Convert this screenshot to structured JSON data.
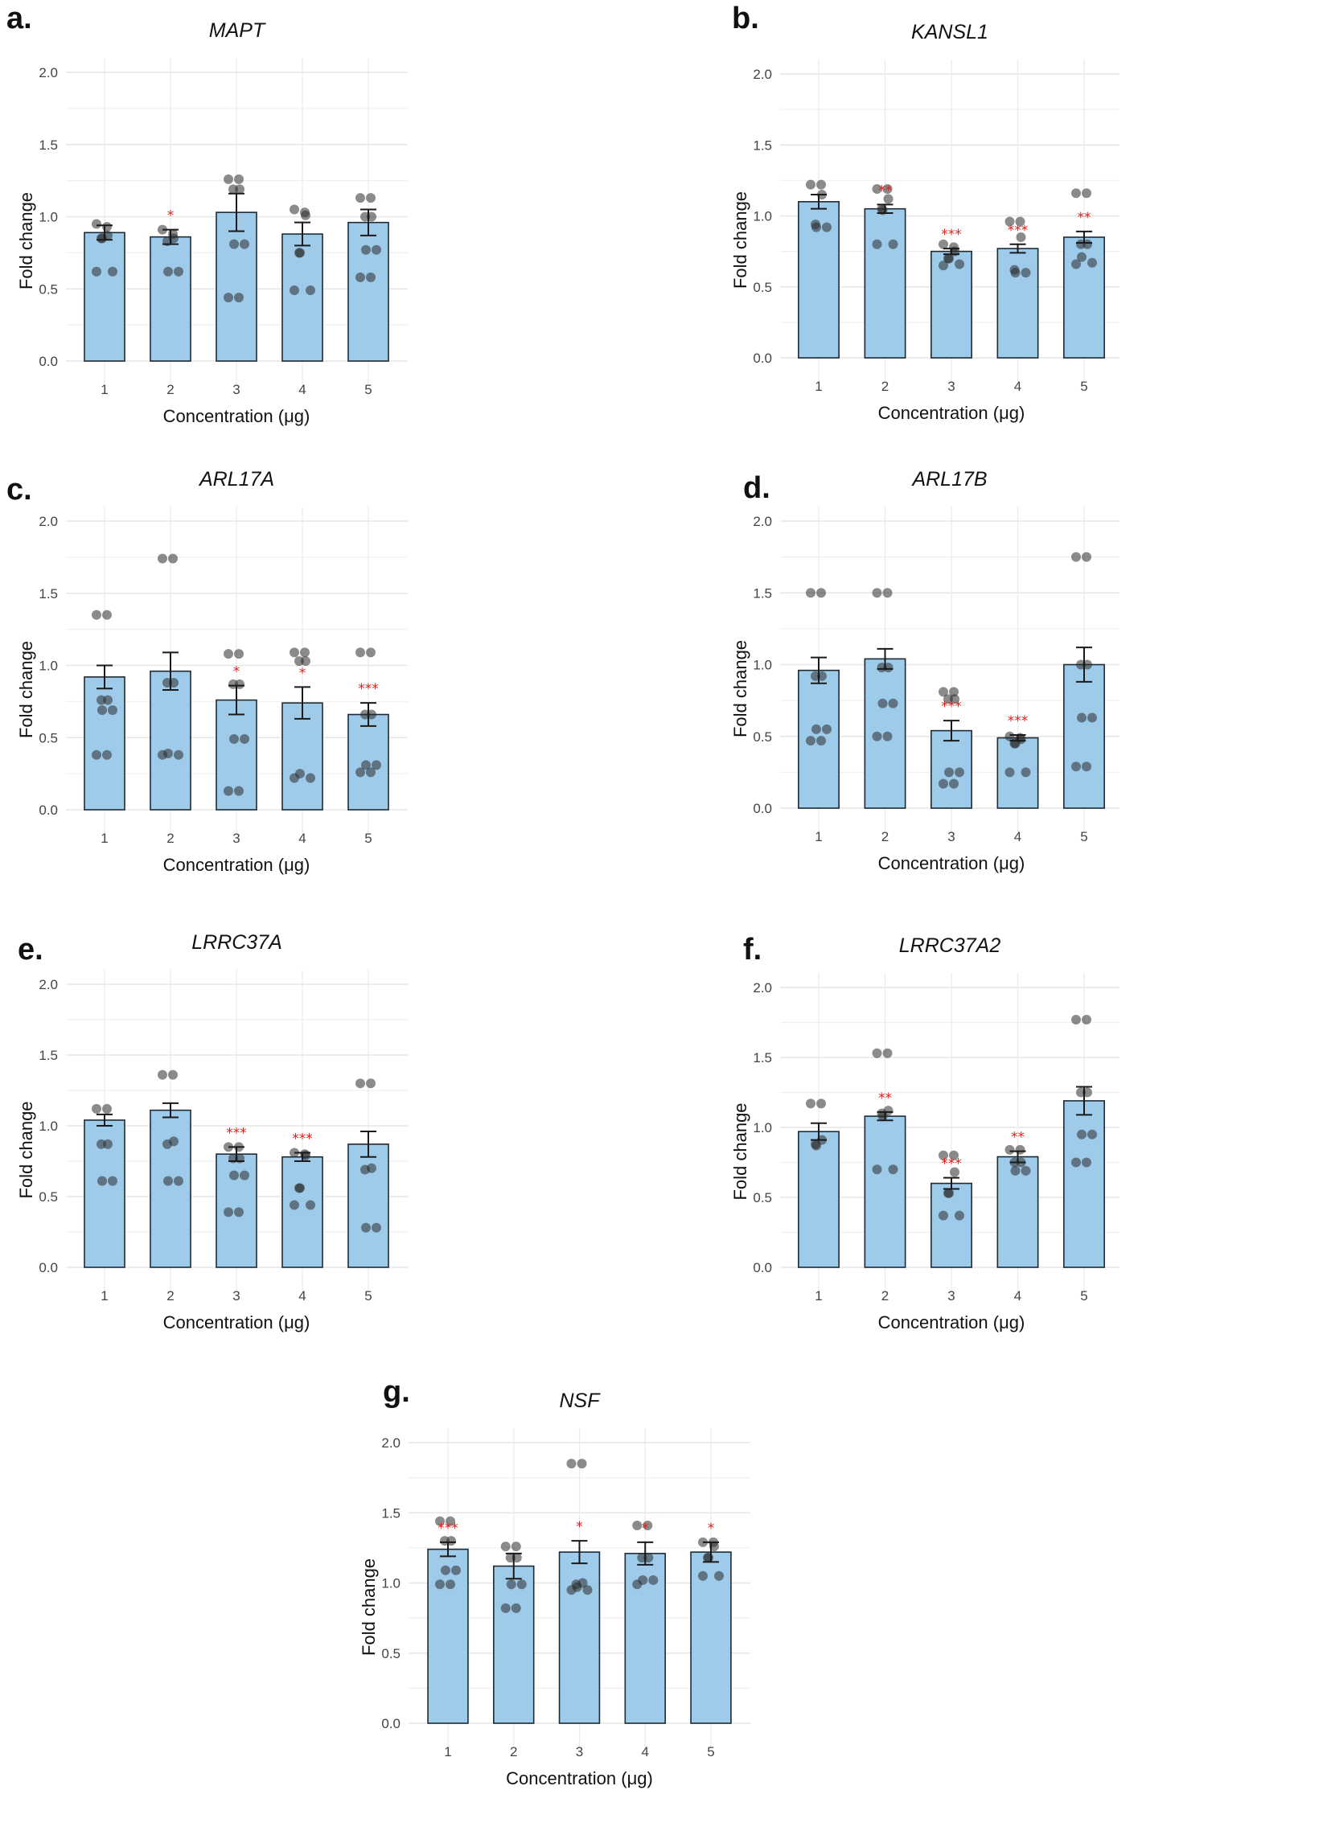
{
  "figure": {
    "bar_color": "#9ecbea",
    "bar_stroke": "#1e2a33",
    "dot_color": "#2b2b2b",
    "sig_color": "#e0201b",
    "grid_color": "#ebebeb"
  },
  "chart_data": [
    {
      "panel": "a.",
      "type": "bar",
      "title": "MAPT",
      "xlabel": "Concentration (μg)",
      "ylabel": "Fold change",
      "categories": [
        "1",
        "2",
        "3",
        "4",
        "5"
      ],
      "yticks": [
        "0.0",
        "0.5",
        "1.0",
        "1.5",
        "2.0"
      ],
      "ylim": [
        0,
        2.0
      ],
      "grid": true,
      "values": [
        0.89,
        0.86,
        1.03,
        0.88,
        0.96
      ],
      "sem": [
        0.05,
        0.05,
        0.13,
        0.08,
        0.09
      ],
      "significance": [
        "",
        "*",
        "",
        "",
        ""
      ],
      "points": [
        [
          0.95,
          0.93,
          0.87,
          0.85,
          0.85,
          0.62,
          0.62
        ],
        [
          0.91,
          0.88,
          0.85,
          0.83,
          0.62,
          0.62
        ],
        [
          1.26,
          1.26,
          1.19,
          1.19,
          0.81,
          0.81,
          0.44,
          0.44
        ],
        [
          1.05,
          1.03,
          1.01,
          0.75,
          0.75,
          0.49,
          0.49
        ],
        [
          1.13,
          1.13,
          1.0,
          1.0,
          0.77,
          0.77,
          0.58,
          0.58
        ]
      ]
    },
    {
      "panel": "b.",
      "type": "bar",
      "title": "KANSL1",
      "xlabel": "Concentration (μg)",
      "ylabel": "Fold change",
      "categories": [
        "1",
        "2",
        "3",
        "4",
        "5"
      ],
      "yticks": [
        "0.0",
        "0.5",
        "1.0",
        "1.5",
        "2.0"
      ],
      "ylim": [
        0,
        2.0
      ],
      "grid": true,
      "values": [
        1.1,
        1.05,
        0.75,
        0.77,
        0.85
      ],
      "sem": [
        0.05,
        0.03,
        0.02,
        0.03,
        0.04
      ],
      "significance": [
        "",
        "**",
        "***",
        "***",
        "**"
      ],
      "points": [
        [
          1.22,
          1.22,
          1.15,
          0.94,
          0.92,
          0.92
        ],
        [
          1.19,
          1.19,
          1.12,
          1.05,
          1.04,
          0.8,
          0.8
        ],
        [
          0.8,
          0.78,
          0.75,
          0.7,
          0.7,
          0.66,
          0.65
        ],
        [
          0.96,
          0.96,
          0.85,
          0.62,
          0.6,
          0.6
        ],
        [
          1.16,
          1.16,
          0.8,
          0.8,
          0.71,
          0.67,
          0.66
        ]
      ]
    },
    {
      "panel": "c.",
      "type": "bar",
      "title": "ARL17A",
      "xlabel": "Concentration (μg)",
      "ylabel": "Fold change",
      "categories": [
        "1",
        "2",
        "3",
        "4",
        "5"
      ],
      "yticks": [
        "0.0",
        "0.5",
        "1.0",
        "1.5",
        "2.0"
      ],
      "ylim": [
        0,
        2.0
      ],
      "grid": true,
      "values": [
        0.92,
        0.96,
        0.76,
        0.74,
        0.66
      ],
      "sem": [
        0.08,
        0.13,
        0.1,
        0.11,
        0.08
      ],
      "significance": [
        "",
        "",
        "*",
        "*",
        "***"
      ],
      "points": [
        [
          1.35,
          1.35,
          0.76,
          0.76,
          0.69,
          0.69,
          0.38,
          0.38
        ],
        [
          1.74,
          1.74,
          0.88,
          0.88,
          0.39,
          0.38,
          0.38
        ],
        [
          1.08,
          1.08,
          0.87,
          0.87,
          0.49,
          0.49,
          0.13,
          0.13
        ],
        [
          1.09,
          1.09,
          1.03,
          1.03,
          0.25,
          0.22,
          0.22
        ],
        [
          1.09,
          1.09,
          0.66,
          0.66,
          0.31,
          0.31,
          0.26,
          0.26
        ]
      ]
    },
    {
      "panel": "d.",
      "type": "bar",
      "title": "ARL17B",
      "xlabel": "Concentration (μg)",
      "ylabel": "Fold change",
      "categories": [
        "1",
        "2",
        "3",
        "4",
        "5"
      ],
      "yticks": [
        "0.0",
        "0.5",
        "1.0",
        "1.5",
        "2.0"
      ],
      "ylim": [
        0,
        2.0
      ],
      "grid": true,
      "values": [
        0.96,
        1.04,
        0.54,
        0.49,
        1.0
      ],
      "sem": [
        0.09,
        0.07,
        0.07,
        0.02,
        0.12
      ],
      "significance": [
        "",
        "",
        "***",
        "***",
        ""
      ],
      "points": [
        [
          1.5,
          1.5,
          0.92,
          0.92,
          0.55,
          0.55,
          0.47,
          0.47
        ],
        [
          1.5,
          1.5,
          0.98,
          0.98,
          0.73,
          0.73,
          0.5,
          0.5
        ],
        [
          0.81,
          0.81,
          0.76,
          0.76,
          0.25,
          0.25,
          0.17,
          0.17
        ],
        [
          0.5,
          0.49,
          0.48,
          0.45,
          0.45,
          0.25,
          0.25
        ],
        [
          1.75,
          1.75,
          1.0,
          1.0,
          0.63,
          0.63,
          0.29,
          0.29
        ]
      ]
    },
    {
      "panel": "e.",
      "type": "bar",
      "title": "LRRC37A",
      "xlabel": "Concentration (μg)",
      "ylabel": "Fold change",
      "categories": [
        "1",
        "2",
        "3",
        "4",
        "5"
      ],
      "yticks": [
        "0.0",
        "0.5",
        "1.0",
        "1.5",
        "2.0"
      ],
      "ylim": [
        0,
        2.0
      ],
      "grid": true,
      "values": [
        1.04,
        1.11,
        0.8,
        0.78,
        0.87
      ],
      "sem": [
        0.04,
        0.05,
        0.05,
        0.03,
        0.09
      ],
      "significance": [
        "",
        "",
        "***",
        "***",
        ""
      ],
      "points": [
        [
          1.12,
          1.12,
          0.87,
          0.87,
          0.61,
          0.61
        ],
        [
          1.36,
          1.36,
          0.89,
          0.87,
          0.61,
          0.61
        ],
        [
          0.85,
          0.85,
          0.77,
          0.77,
          0.65,
          0.65,
          0.39,
          0.39
        ],
        [
          0.81,
          0.8,
          0.79,
          0.56,
          0.56,
          0.44,
          0.44
        ],
        [
          1.3,
          1.3,
          0.7,
          0.69,
          0.28,
          0.28
        ]
      ]
    },
    {
      "panel": "f.",
      "type": "bar",
      "title": "LRRC37A2",
      "xlabel": "Concentration (μg)",
      "ylabel": "Fold change",
      "categories": [
        "1",
        "2",
        "3",
        "4",
        "5"
      ],
      "yticks": [
        "0.0",
        "0.5",
        "1.0",
        "1.5",
        "2.0"
      ],
      "ylim": [
        0,
        2.0
      ],
      "grid": true,
      "values": [
        0.97,
        1.08,
        0.6,
        0.79,
        1.19
      ],
      "sem": [
        0.06,
        0.03,
        0.04,
        0.04,
        0.1
      ],
      "significance": [
        "",
        "**",
        "***",
        "**",
        ""
      ],
      "points": [
        [
          1.17,
          1.17,
          0.91,
          0.88,
          0.87
        ],
        [
          1.53,
          1.53,
          1.12,
          1.1,
          1.08,
          0.7,
          0.7
        ],
        [
          0.8,
          0.8,
          0.68,
          0.53,
          0.53,
          0.37,
          0.37
        ],
        [
          0.84,
          0.84,
          0.75,
          0.75,
          0.69,
          0.69
        ],
        [
          1.77,
          1.77,
          1.25,
          1.25,
          0.95,
          0.95,
          0.75,
          0.75
        ]
      ]
    },
    {
      "panel": "g.",
      "type": "bar",
      "title": "NSF",
      "xlabel": "Concentration (μg)",
      "ylabel": "Fold change",
      "categories": [
        "1",
        "2",
        "3",
        "4",
        "5"
      ],
      "yticks": [
        "0.0",
        "0.5",
        "1.0",
        "1.5",
        "2.0"
      ],
      "ylim": [
        0,
        2.0
      ],
      "grid": true,
      "values": [
        1.24,
        1.12,
        1.22,
        1.21,
        1.22
      ],
      "sem": [
        0.05,
        0.09,
        0.08,
        0.08,
        0.07
      ],
      "significance": [
        "***",
        "",
        "*",
        "*",
        "*"
      ],
      "points": [
        [
          1.44,
          1.44,
          1.3,
          1.3,
          1.09,
          1.09,
          0.99,
          0.99
        ],
        [
          1.26,
          1.26,
          1.18,
          1.18,
          0.99,
          0.99,
          0.82,
          0.82
        ],
        [
          1.85,
          1.85,
          1.0,
          0.99,
          0.97,
          0.95,
          0.95
        ],
        [
          1.41,
          1.41,
          1.18,
          1.18,
          1.02,
          1.02,
          0.99
        ],
        [
          1.29,
          1.29,
          1.26,
          1.18,
          1.18,
          1.05,
          1.05
        ]
      ]
    }
  ]
}
